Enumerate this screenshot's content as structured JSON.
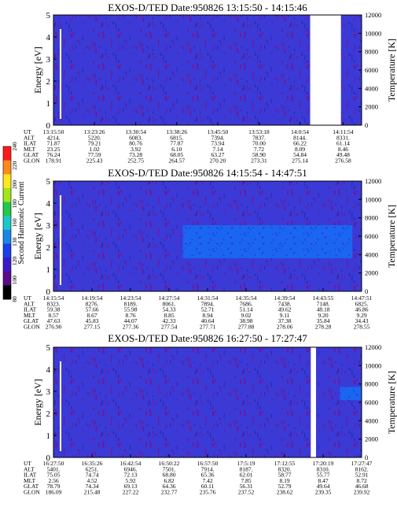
{
  "chart_data": [
    {
      "type": "heatmap",
      "title": "EXOS-D/TED   Date:950826   13:15:50 - 14:15:46",
      "ylabel": "Energy [eV]",
      "y2label": "Temperature [K]",
      "ylim": [
        0,
        5
      ],
      "y2lim": [
        0,
        12000
      ],
      "yticks": [
        "0",
        "1",
        "2",
        "3",
        "4",
        "5"
      ],
      "y2ticks": [
        "0",
        "2000",
        "4000",
        "6000",
        "8000",
        "10000",
        "12000"
      ],
      "gaps": [
        [
          0.833,
          0.933
        ]
      ],
      "band": null,
      "ephem_labels": [
        "UT",
        "ALT",
        "ILAT",
        "MLT",
        "GLAT",
        "GLON"
      ],
      "ephem": [
        {
          "f": 0.0,
          "v": [
            "13:15:50",
            "4214.",
            "71.87",
            "23.25",
            "76.24",
            "178.91"
          ]
        },
        {
          "f": 0.133,
          "v": [
            "13:23:26",
            "5220.",
            "79.21",
            "1.02",
            "77.59",
            "225.43"
          ]
        },
        {
          "f": 0.267,
          "v": [
            "13:30:54",
            "6083.",
            "80.76",
            "3.92",
            "73.28",
            "252.75"
          ]
        },
        {
          "f": 0.4,
          "v": [
            "13:38:26",
            "6815.",
            "77.87",
            "6.10",
            "68.05",
            "264.57"
          ]
        },
        {
          "f": 0.533,
          "v": [
            "13:45:50",
            "7394.",
            "73.94",
            "7.14",
            "63.27",
            "270.20"
          ]
        },
        {
          "f": 0.667,
          "v": [
            "13:53:18",
            "7837.",
            "70.00",
            "7.72",
            "58.90",
            "273.31"
          ]
        },
        {
          "f": 0.8,
          "v": [
            "14:0:54",
            "8144.",
            "66.22",
            "8.09",
            "54.84",
            "275.14"
          ]
        },
        {
          "f": 0.94,
          "v": [
            "14:11:54",
            "8331.",
            "61.14",
            "8.46",
            "49.48",
            "276.58"
          ]
        }
      ]
    },
    {
      "type": "heatmap",
      "title": "EXOS-D/TED   Date:950826   14:15:54 - 14:47:51",
      "ylabel": "Energy [eV]",
      "y2label": "Temperature [K]",
      "ylim": [
        0,
        5
      ],
      "y2lim": [
        0,
        12000
      ],
      "yticks": [
        "0",
        "1",
        "2",
        "3",
        "4",
        "5"
      ],
      "y2ticks": [
        "0",
        "2000",
        "4000",
        "6000",
        "8000",
        "10000",
        "12000"
      ],
      "gaps": [],
      "band": {
        "t0": 0.42,
        "t1": 0.97,
        "e0": 1.5,
        "e1": 3.0
      },
      "ephem_labels": [
        "UT",
        "ALT",
        "ILAT",
        "MLT",
        "GLAT",
        "GLON"
      ],
      "ephem": [
        {
          "f": 0.0,
          "v": [
            "14:15:54",
            "8323.",
            "59.38",
            "8.57",
            "47.63",
            "276.90"
          ]
        },
        {
          "f": 0.125,
          "v": [
            "14:19:54",
            "8276.",
            "57.66",
            "8.67",
            "45.83",
            "277.15"
          ]
        },
        {
          "f": 0.25,
          "v": [
            "14:23:54",
            "8189.",
            "55.98",
            "8.76",
            "44.07",
            "277.36"
          ]
        },
        {
          "f": 0.375,
          "v": [
            "14:27:54",
            "8061.",
            "54.33",
            "8.85",
            "42.33",
            "277.54"
          ]
        },
        {
          "f": 0.5,
          "v": [
            "14:31:54",
            "7894.",
            "52.71",
            "8.94",
            "40.64",
            "277.71"
          ]
        },
        {
          "f": 0.625,
          "v": [
            "14:35:54",
            "7686.",
            "51.14",
            "9.02",
            "38.98",
            "277.88"
          ]
        },
        {
          "f": 0.75,
          "v": [
            "14:39:54",
            "7438.",
            "49.62",
            "9.11",
            "37.38",
            "278.06"
          ]
        },
        {
          "f": 0.875,
          "v": [
            "14:43:55",
            "7148.",
            "48.18",
            "9.20",
            "35.84",
            "278.28"
          ]
        },
        {
          "f": 1.0,
          "v": [
            "14:47:51",
            "6825.",
            "46.86",
            "9.29",
            "34.43",
            "278.55"
          ]
        }
      ]
    },
    {
      "type": "heatmap",
      "title": "EXOS-D/TED   Date:950826   16:27:50 - 17:27:47",
      "ylabel": "Energy [eV]",
      "y2label": "Temperature [K]",
      "ylim": [
        0,
        5
      ],
      "y2lim": [
        0,
        12000
      ],
      "yticks": [
        "0",
        "1",
        "2",
        "3",
        "4",
        "5"
      ],
      "y2ticks": [
        "0",
        "2000",
        "4000",
        "6000",
        "8000",
        "10000",
        "12000"
      ],
      "gaps": [
        [
          0.835,
          0.852
        ]
      ],
      "band": {
        "t0": 0.93,
        "t1": 1.0,
        "e0": 2.6,
        "e1": 3.2
      },
      "ephem_labels": [
        "UT",
        "ALT",
        "ILAT",
        "MLT",
        "GLAT",
        "GLON"
      ],
      "ephem": [
        {
          "f": 0.0,
          "v": [
            "16:27:50",
            "5401.",
            "75.05",
            "2.56",
            "78.79",
            "186.09"
          ]
        },
        {
          "f": 0.125,
          "v": [
            "16:35:26",
            "6251.",
            "74.74",
            "4.52",
            "74.34",
            "215.48"
          ]
        },
        {
          "f": 0.25,
          "v": [
            "16:42:54",
            "6946.",
            "72.13",
            "5.92",
            "69.13",
            "227.22"
          ]
        },
        {
          "f": 0.375,
          "v": [
            "16:50:22",
            "7501.",
            "68.80",
            "6.82",
            "64.36",
            "232.77"
          ]
        },
        {
          "f": 0.5,
          "v": [
            "16:57:50",
            "7914.",
            "65.36",
            "7.42",
            "60.11",
            "235.76"
          ]
        },
        {
          "f": 0.625,
          "v": [
            "17:5:19",
            "8187.",
            "62.01",
            "7.85",
            "56.31",
            "237.52"
          ]
        },
        {
          "f": 0.75,
          "v": [
            "17:12:55",
            "8320.",
            "58.77",
            "8.19",
            "52.79",
            "238.62"
          ]
        },
        {
          "f": 0.875,
          "v": [
            "17:20:19",
            "8310.",
            "55.77",
            "8.47",
            "49.64",
            "239.35"
          ]
        },
        {
          "f": 1.0,
          "v": [
            "17:27:47",
            "8162.",
            "52.91",
            "8.72",
            "46.68",
            "239.92"
          ]
        }
      ]
    }
  ],
  "colorbar": {
    "label": "Second Harmonic Current",
    "ticks": [
      "80",
      "100",
      "120",
      "130",
      "160",
      "180",
      "200",
      "220",
      "240"
    ],
    "colors": [
      "#000000",
      "#5a0d88",
      "#3a1ac8",
      "#1a3fe8",
      "#1a86e8",
      "#1ac8c8",
      "#22c84a",
      "#a0e61a",
      "#ffe81a",
      "#ff8a1a",
      "#ff1a1a"
    ]
  }
}
